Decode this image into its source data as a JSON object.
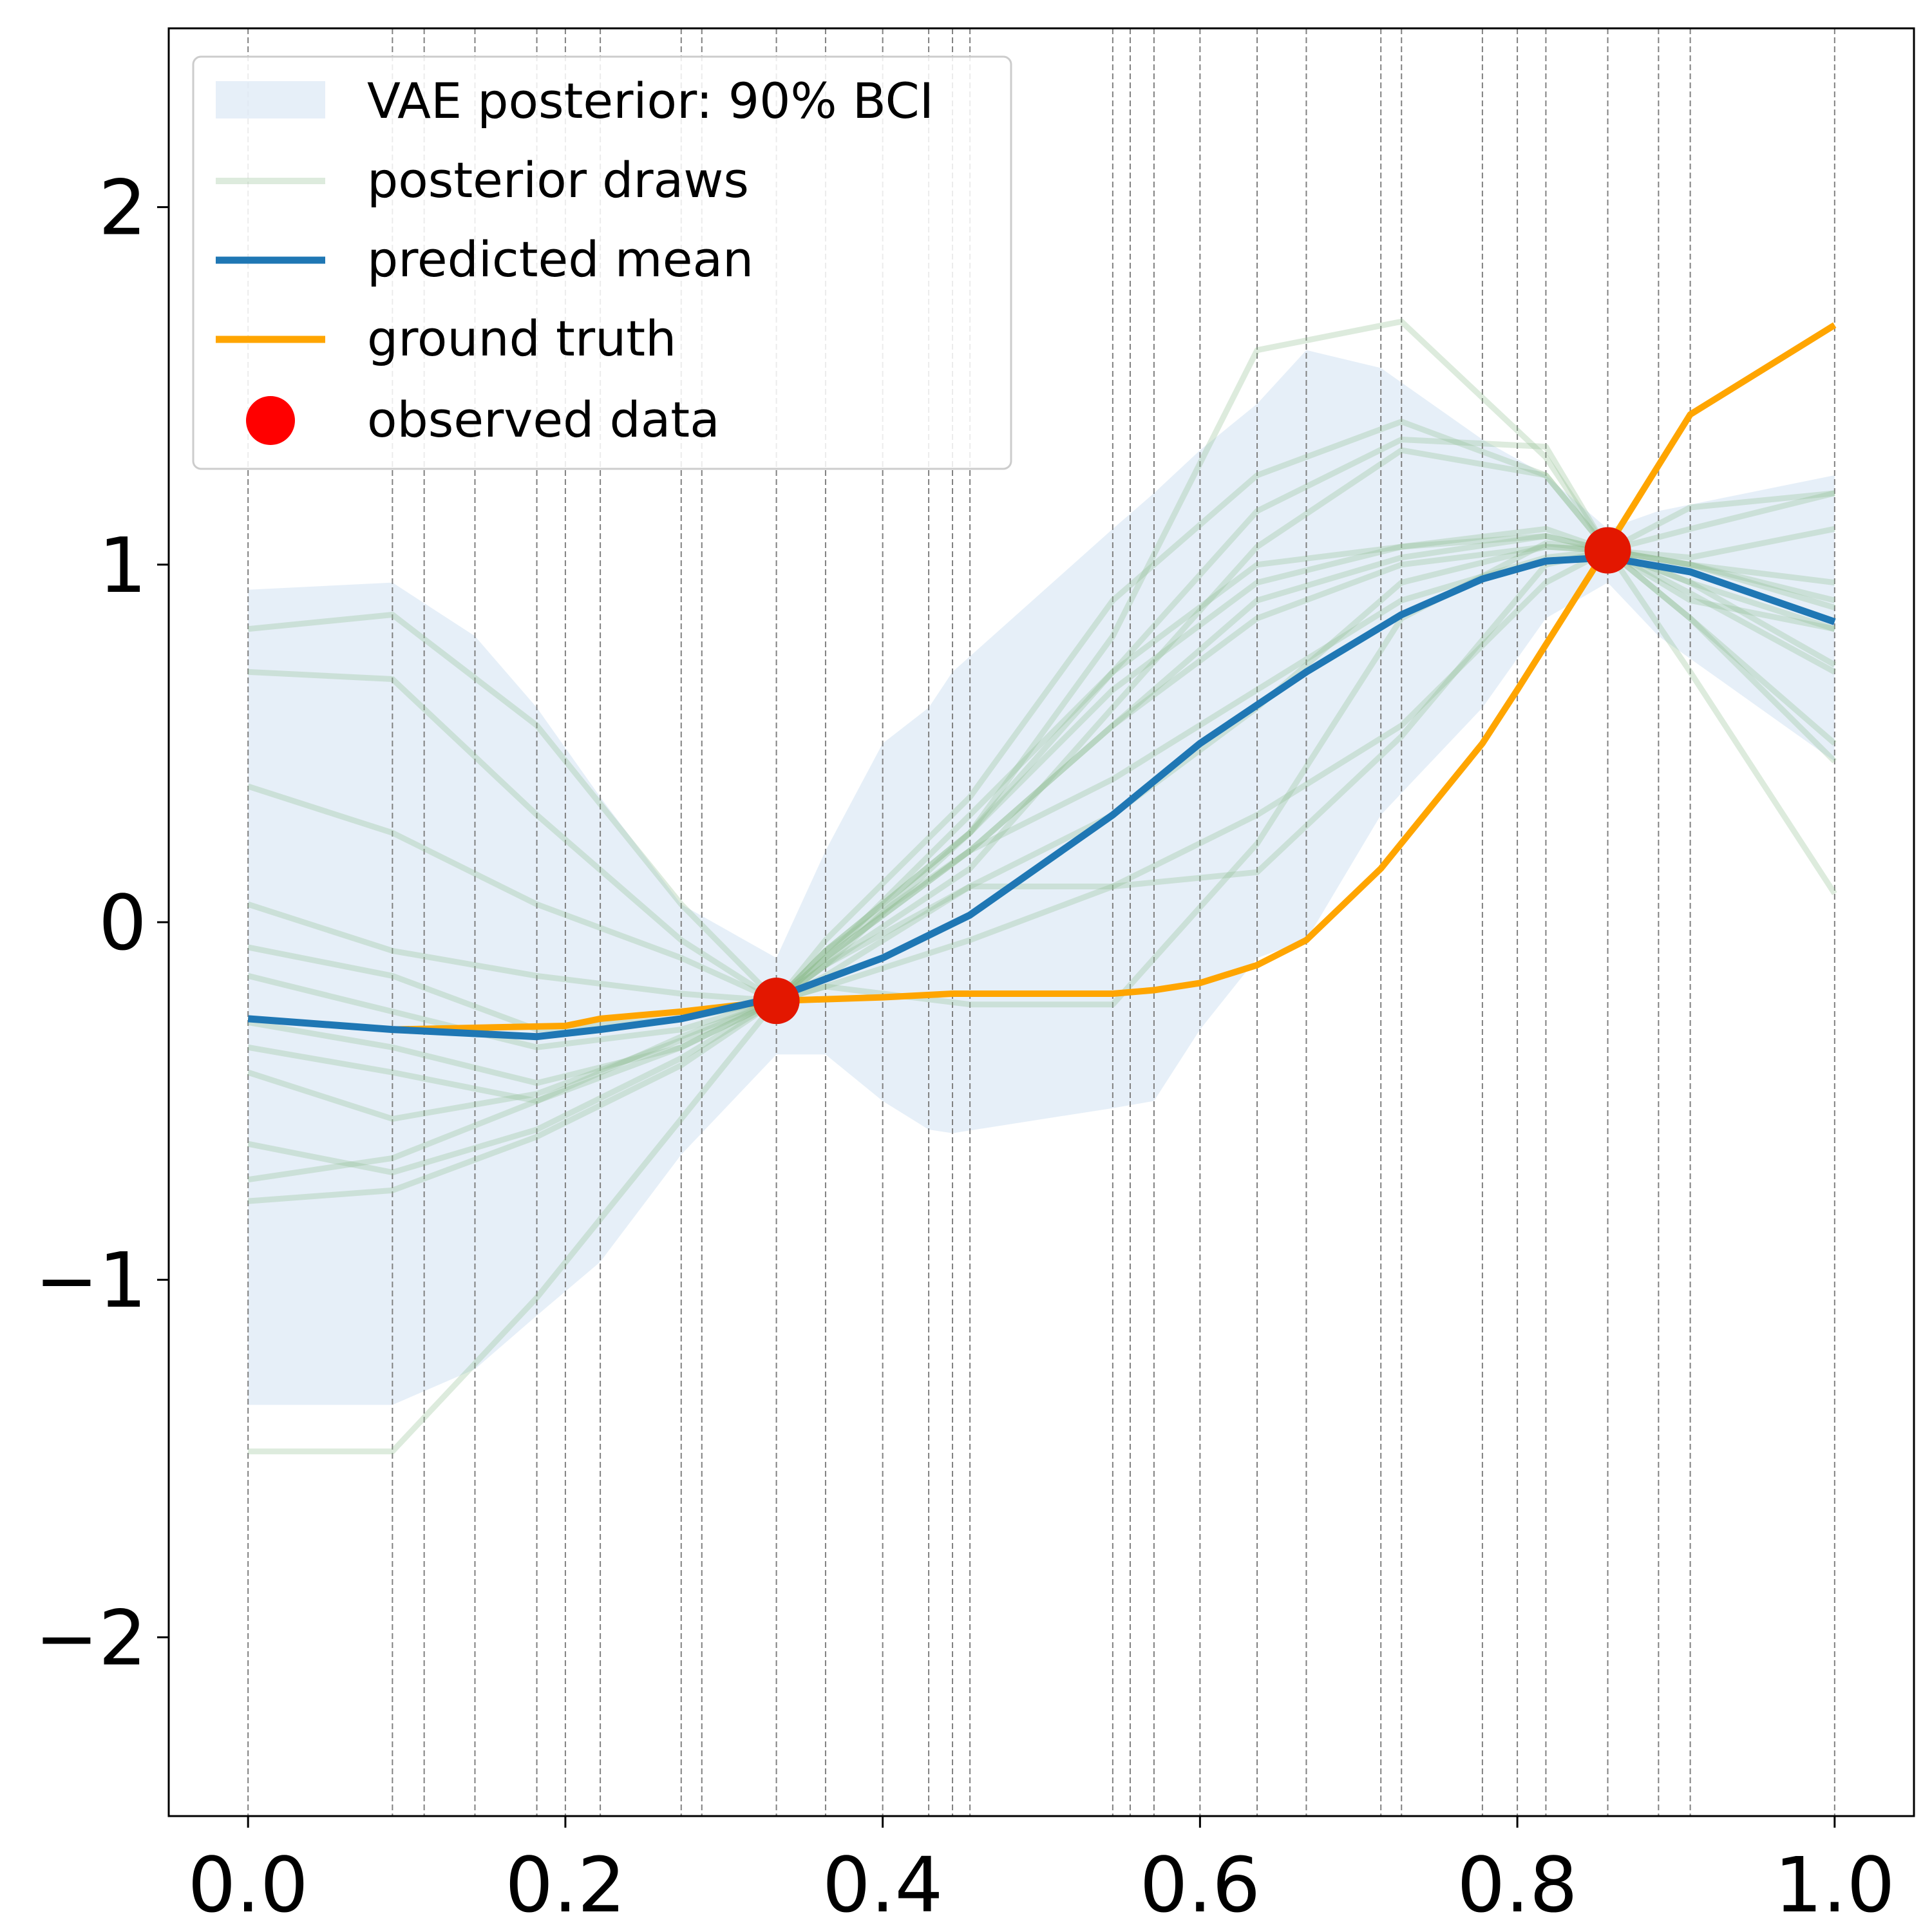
{
  "chart_data": {
    "type": "line",
    "title": "",
    "xlabel": "",
    "ylabel": "",
    "xlim": [
      -0.05,
      1.05
    ],
    "ylim": [
      -2.5,
      2.5
    ],
    "xticks": [
      0.0,
      0.2,
      0.4,
      0.6,
      0.8,
      1.0
    ],
    "xtick_labels": [
      "0.0",
      "0.2",
      "0.4",
      "0.6",
      "0.8",
      "1.0"
    ],
    "yticks": [
      -2,
      -1,
      0,
      1,
      2
    ],
    "ytick_labels": [
      "−2",
      "−1",
      "0",
      "1",
      "2"
    ],
    "grid": false,
    "legend_position": "top-left",
    "legend": {
      "band": "VAE posterior: 90% BCI",
      "draws": "posterior draws",
      "mean": "predicted mean",
      "truth": "ground truth",
      "observed": "observed data"
    },
    "colors": {
      "band": "#dce8f5",
      "draws": "#8fbc8f",
      "mean": "#1f77b4",
      "truth": "#ffa500",
      "observed": "#ff0000",
      "vlines": "#808080"
    },
    "vertical_lines_x": [
      0.0,
      0.091,
      0.111,
      0.143,
      0.182,
      0.2,
      0.222,
      0.273,
      0.286,
      0.333,
      0.364,
      0.4,
      0.429,
      0.444,
      0.455,
      0.545,
      0.556,
      0.571,
      0.6,
      0.636,
      0.667,
      0.714,
      0.727,
      0.778,
      0.8,
      0.818,
      0.857,
      0.889,
      0.909,
      1.0
    ],
    "band": {
      "x": [
        0.0,
        0.091,
        0.143,
        0.182,
        0.222,
        0.273,
        0.333,
        0.364,
        0.4,
        0.429,
        0.444,
        0.545,
        0.571,
        0.6,
        0.636,
        0.667,
        0.714,
        0.778,
        0.818,
        0.857,
        0.889,
        1.0
      ],
      "upper": [
        0.93,
        0.95,
        0.8,
        0.6,
        0.35,
        0.05,
        -0.1,
        0.2,
        0.5,
        0.6,
        0.7,
        1.1,
        1.2,
        1.32,
        1.45,
        1.6,
        1.55,
        1.35,
        1.25,
        1.1,
        1.15,
        1.25
      ],
      "lower": [
        -1.35,
        -1.35,
        -1.25,
        -1.1,
        -0.95,
        -0.65,
        -0.37,
        -0.37,
        -0.5,
        -0.58,
        -0.59,
        -0.52,
        -0.5,
        -0.3,
        -0.1,
        -0.05,
        0.3,
        0.6,
        0.85,
        0.95,
        0.8,
        0.45
      ]
    },
    "posterior_draws": {
      "x": [
        0.0,
        0.091,
        0.182,
        0.273,
        0.333,
        0.364,
        0.455,
        0.545,
        0.636,
        0.727,
        0.818,
        0.857,
        0.909,
        1.0
      ],
      "draws": [
        [
          0.82,
          0.86,
          0.55,
          0.05,
          -0.22,
          -0.18,
          -0.23,
          -0.23,
          0.22,
          0.85,
          1.06,
          1.04,
          0.95,
          0.82
        ],
        [
          0.7,
          0.68,
          0.3,
          -0.05,
          -0.22,
          -0.15,
          0.1,
          0.1,
          0.14,
          0.52,
          1.0,
          1.04,
          1.1,
          1.2
        ],
        [
          0.38,
          0.25,
          0.05,
          -0.1,
          -0.22,
          -0.1,
          0.3,
          0.7,
          1.0,
          1.05,
          1.08,
          1.04,
          0.95,
          0.72
        ],
        [
          0.05,
          -0.08,
          -0.15,
          -0.2,
          -0.22,
          -0.1,
          0.2,
          0.55,
          0.85,
          1.0,
          1.05,
          1.04,
          1.0,
          0.9
        ],
        [
          -0.07,
          -0.15,
          -0.3,
          -0.27,
          -0.22,
          -0.05,
          0.35,
          0.9,
          1.25,
          1.4,
          1.25,
          1.04,
          0.7,
          0.08
        ],
        [
          -0.15,
          -0.25,
          -0.35,
          -0.3,
          -0.22,
          -0.08,
          0.25,
          0.8,
          1.6,
          1.68,
          1.3,
          1.04,
          0.85,
          0.45
        ],
        [
          -0.28,
          -0.35,
          -0.45,
          -0.35,
          -0.22,
          -0.12,
          0.15,
          0.6,
          1.05,
          1.32,
          1.25,
          1.04,
          1.0,
          0.95
        ],
        [
          -0.35,
          -0.42,
          -0.5,
          -0.35,
          -0.22,
          -0.08,
          0.2,
          0.4,
          0.65,
          0.9,
          1.02,
          1.04,
          1.16,
          1.2
        ],
        [
          -0.42,
          -0.55,
          -0.48,
          -0.33,
          -0.22,
          -0.12,
          0.1,
          0.3,
          0.6,
          0.95,
          1.05,
          1.04,
          1.0,
          0.88
        ],
        [
          -0.62,
          -0.7,
          -0.58,
          -0.38,
          -0.22,
          -0.1,
          0.2,
          0.55,
          0.9,
          1.02,
          1.08,
          1.04,
          0.92,
          0.7
        ],
        [
          -0.72,
          -0.66,
          -0.5,
          -0.32,
          -0.22,
          -0.12,
          0.25,
          0.65,
          0.95,
          1.05,
          1.1,
          1.04,
          1.02,
          1.1
        ],
        [
          -0.78,
          -0.75,
          -0.6,
          -0.4,
          -0.22,
          -0.18,
          -0.05,
          0.1,
          0.3,
          0.55,
          0.95,
          1.04,
          0.85,
          0.5
        ],
        [
          -1.48,
          -1.48,
          -1.05,
          -0.55,
          -0.22,
          -0.08,
          0.25,
          0.7,
          1.15,
          1.35,
          1.33,
          1.04,
          0.9,
          0.82
        ]
      ]
    },
    "predicted_mean": {
      "x": [
        0.0,
        0.091,
        0.182,
        0.222,
        0.273,
        0.333,
        0.4,
        0.455,
        0.545,
        0.6,
        0.667,
        0.727,
        0.778,
        0.818,
        0.857,
        0.909,
        1.0
      ],
      "y": [
        -0.27,
        -0.3,
        -0.32,
        -0.3,
        -0.27,
        -0.21,
        -0.1,
        0.02,
        0.3,
        0.5,
        0.7,
        0.86,
        0.96,
        1.01,
        1.02,
        0.98,
        0.84
      ]
    },
    "ground_truth": {
      "x": [
        0.0,
        0.091,
        0.2,
        0.222,
        0.273,
        0.333,
        0.4,
        0.444,
        0.545,
        0.571,
        0.6,
        0.636,
        0.667,
        0.714,
        0.778,
        0.8,
        0.857,
        0.909,
        1.0
      ],
      "y": [
        -0.27,
        -0.3,
        -0.29,
        -0.27,
        -0.25,
        -0.22,
        -0.21,
        -0.2,
        -0.2,
        -0.19,
        -0.17,
        -0.12,
        -0.05,
        0.15,
        0.5,
        0.65,
        1.05,
        1.42,
        1.67
      ]
    },
    "observed_data": {
      "x": [
        0.333,
        0.857
      ],
      "y": [
        -0.22,
        1.04
      ]
    }
  }
}
